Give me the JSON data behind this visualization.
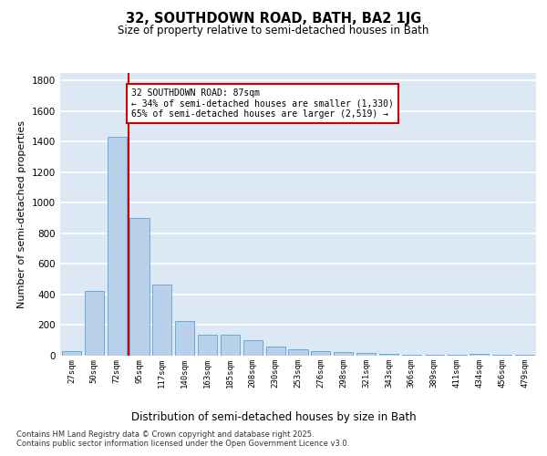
{
  "title": "32, SOUTHDOWN ROAD, BATH, BA2 1JG",
  "subtitle": "Size of property relative to semi-detached houses in Bath",
  "xlabel": "Distribution of semi-detached houses by size in Bath",
  "ylabel": "Number of semi-detached properties",
  "bar_color": "#b8d0ea",
  "bar_edge_color": "#6aacd6",
  "background_color": "#dce9f5",
  "grid_color": "#ffffff",
  "categories": [
    "27sqm",
    "50sqm",
    "72sqm",
    "95sqm",
    "117sqm",
    "140sqm",
    "163sqm",
    "185sqm",
    "208sqm",
    "230sqm",
    "253sqm",
    "276sqm",
    "298sqm",
    "321sqm",
    "343sqm",
    "366sqm",
    "389sqm",
    "411sqm",
    "434sqm",
    "456sqm",
    "479sqm"
  ],
  "values": [
    30,
    425,
    1430,
    900,
    465,
    225,
    140,
    140,
    100,
    58,
    40,
    32,
    25,
    18,
    12,
    8,
    8,
    8,
    12,
    7,
    5
  ],
  "ylim": [
    0,
    1850
  ],
  "yticks": [
    0,
    200,
    400,
    600,
    800,
    1000,
    1200,
    1400,
    1600,
    1800
  ],
  "property_label": "32 SOUTHDOWN ROAD: 87sqm",
  "pct_smaller": 34,
  "pct_larger": 65,
  "n_smaller": 1330,
  "n_larger": 2519,
  "vline_x_index": 2.5,
  "annotation_box_color": "#ffffff",
  "annotation_box_edge": "#cc0000",
  "vline_color": "#cc0000",
  "footer_line1": "Contains HM Land Registry data © Crown copyright and database right 2025.",
  "footer_line2": "Contains public sector information licensed under the Open Government Licence v3.0."
}
